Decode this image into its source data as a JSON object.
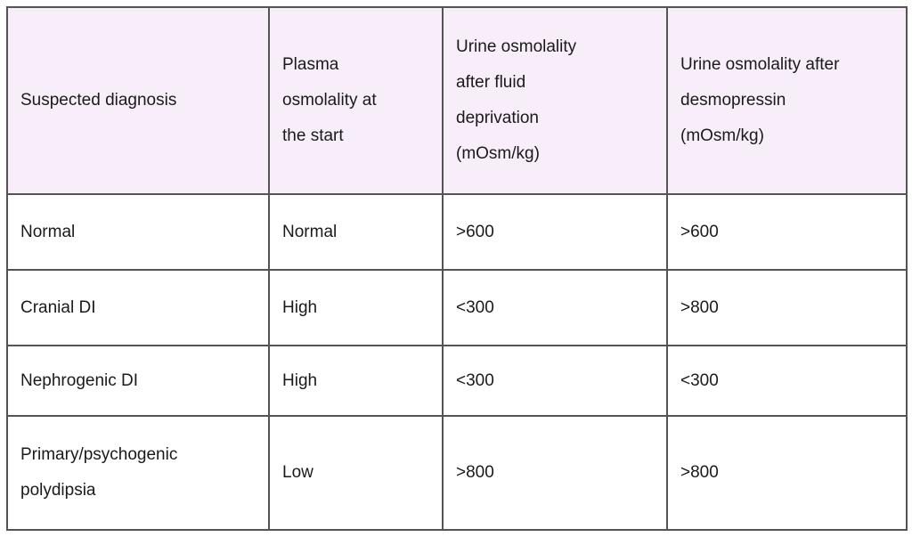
{
  "table": {
    "style": {
      "header_bg": "#f8eefa",
      "body_bg": "#ffffff",
      "border_color": "#545454",
      "text_color": "#1a1a1a"
    },
    "columns": [
      {
        "id": "suspected-diagnosis",
        "lines": [
          "Suspected diagnosis"
        ]
      },
      {
        "id": "plasma-osmolality-at-start",
        "lines": [
          "Plasma",
          "osmolality at",
          "the start"
        ]
      },
      {
        "id": "urine-osmolality-after-fluid-deprivation",
        "lines": [
          "Urine osmolality",
          "after fluid",
          "deprivation",
          "(mOsm/kg)"
        ]
      },
      {
        "id": "urine-osmolality-after-desmopressin",
        "lines": [
          "Urine osmolality after",
          "desmopressin",
          "(mOsm/kg)"
        ]
      }
    ],
    "rows": [
      {
        "cells": [
          "Normal",
          "Normal",
          ">600",
          ">600"
        ]
      },
      {
        "cells": [
          "Cranial DI",
          "High",
          "<300",
          ">800"
        ]
      },
      {
        "cells": [
          "Nephrogenic DI",
          "High",
          "<300",
          "<300"
        ]
      },
      {
        "cells": [
          "Primary/psychogenic polydipsia",
          "Low",
          ">800",
          ">800"
        ]
      }
    ]
  },
  "chart_data": {
    "type": "table",
    "columns": [
      "Suspected diagnosis",
      "Plasma osmolality at the start",
      "Urine osmolality after fluid deprivation (mOsm/kg)",
      "Urine osmolality after desmopressin (mOsm/kg)"
    ],
    "rows": [
      [
        "Normal",
        "Normal",
        ">600",
        ">600"
      ],
      [
        "Cranial DI",
        "High",
        "<300",
        ">800"
      ],
      [
        "Nephrogenic DI",
        "High",
        "<300",
        "<300"
      ],
      [
        "Primary/psychogenic polydipsia",
        "Low",
        ">800",
        ">800"
      ]
    ]
  }
}
